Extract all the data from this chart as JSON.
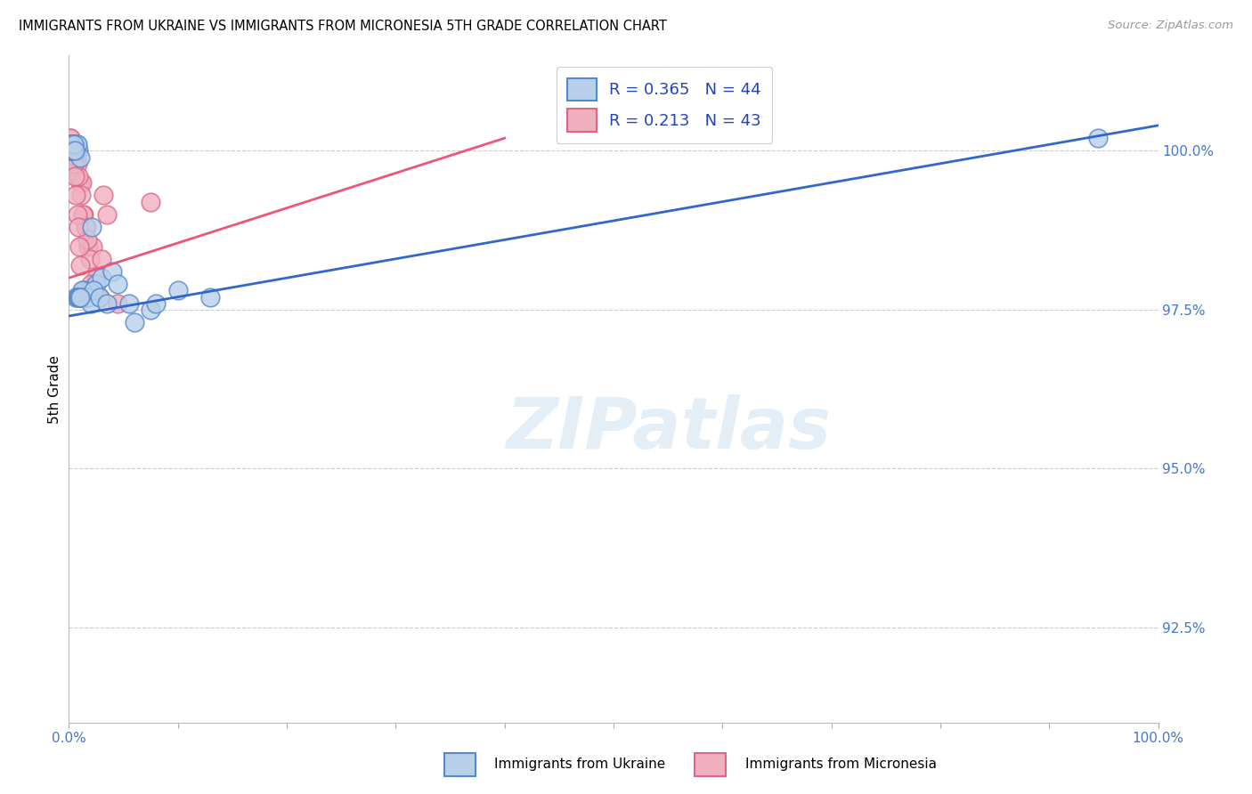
{
  "title": "IMMIGRANTS FROM UKRAINE VS IMMIGRANTS FROM MICRONESIA 5TH GRADE CORRELATION CHART",
  "source": "Source: ZipAtlas.com",
  "ylabel": "5th Grade",
  "xlim": [
    0.0,
    100.0
  ],
  "ylim": [
    91.0,
    101.5
  ],
  "ytick_vals": [
    92.5,
    95.0,
    97.5,
    100.0
  ],
  "ytick_labels": [
    "92.5%",
    "95.0%",
    "97.5%",
    "100.0%"
  ],
  "xtick_vals": [
    0.0,
    10.0,
    20.0,
    30.0,
    40.0,
    50.0,
    60.0,
    70.0,
    80.0,
    90.0,
    100.0
  ],
  "xtick_labels": [
    "0.0%",
    "",
    "",
    "",
    "",
    "",
    "",
    "",
    "",
    "",
    "100.0%"
  ],
  "ukraine_color": "#b8d0ea",
  "ukraine_edge": "#5588cc",
  "micronesia_color": "#f0b0c0",
  "micronesia_edge": "#dd6688",
  "ukraine_line_color": "#3366cc",
  "micronesia_line_color": "#ee5577",
  "ukraine_label": "R = 0.365   N = 44",
  "micronesia_label": "R = 0.213   N = 43",
  "bottom_ukraine_label": "Immigrants from Ukraine",
  "bottom_micronesia_label": "Immigrants from Micronesia",
  "watermark_text": "ZIPatlas",
  "ukraine_x": [
    0.3,
    0.5,
    0.7,
    0.9,
    1.1,
    1.3,
    1.5,
    1.7,
    1.9,
    2.1,
    2.5,
    3.0,
    4.0,
    5.5,
    7.5,
    10.0,
    0.2,
    0.4,
    0.6,
    0.8,
    1.0,
    1.2,
    1.4,
    1.6,
    1.8,
    2.0,
    2.3,
    2.8,
    3.5,
    4.5,
    6.0,
    8.0,
    0.15,
    0.25,
    0.35,
    0.45,
    0.55,
    0.65,
    0.75,
    0.85,
    0.95,
    1.05,
    13.0,
    94.5
  ],
  "ukraine_y": [
    100.1,
    100.1,
    100.1,
    100.0,
    97.7,
    97.7,
    97.8,
    97.7,
    97.8,
    98.8,
    97.9,
    98.0,
    98.1,
    97.6,
    97.5,
    97.8,
    100.0,
    100.1,
    100.0,
    100.1,
    99.9,
    97.8,
    97.7,
    97.7,
    97.7,
    97.6,
    97.8,
    97.7,
    97.6,
    97.9,
    97.3,
    97.6,
    100.1,
    100.0,
    100.0,
    100.1,
    100.0,
    97.7,
    97.7,
    97.7,
    97.7,
    97.7,
    97.7,
    100.2
  ],
  "micronesia_x": [
    0.2,
    0.4,
    0.6,
    0.8,
    1.0,
    1.2,
    1.4,
    1.6,
    1.8,
    2.2,
    3.2,
    0.1,
    0.3,
    0.5,
    0.7,
    0.9,
    1.1,
    1.3,
    1.5,
    1.7,
    1.9,
    2.5,
    3.5,
    0.15,
    0.25,
    0.35,
    0.45,
    0.55,
    0.65,
    0.75,
    0.85,
    0.95,
    1.05,
    1.25,
    1.35,
    0.05,
    0.08,
    0.12,
    3.0,
    4.5,
    7.5,
    2.8,
    2.0
  ],
  "micronesia_y": [
    100.1,
    100.0,
    100.0,
    99.8,
    99.5,
    99.5,
    99.0,
    98.8,
    98.5,
    98.5,
    99.3,
    100.2,
    100.1,
    100.0,
    99.9,
    99.6,
    99.3,
    99.0,
    98.8,
    98.6,
    98.3,
    98.0,
    99.0,
    100.2,
    100.1,
    100.0,
    99.8,
    99.6,
    99.3,
    99.0,
    98.8,
    98.5,
    98.2,
    97.8,
    97.7,
    100.1,
    100.0,
    100.0,
    98.3,
    97.6,
    99.2,
    97.7,
    97.9
  ],
  "ukraine_line_x": [
    0.0,
    100.0
  ],
  "ukraine_line_y": [
    97.4,
    100.4
  ],
  "micronesia_line_x": [
    0.0,
    40.0
  ],
  "micronesia_line_y": [
    98.0,
    100.2
  ]
}
